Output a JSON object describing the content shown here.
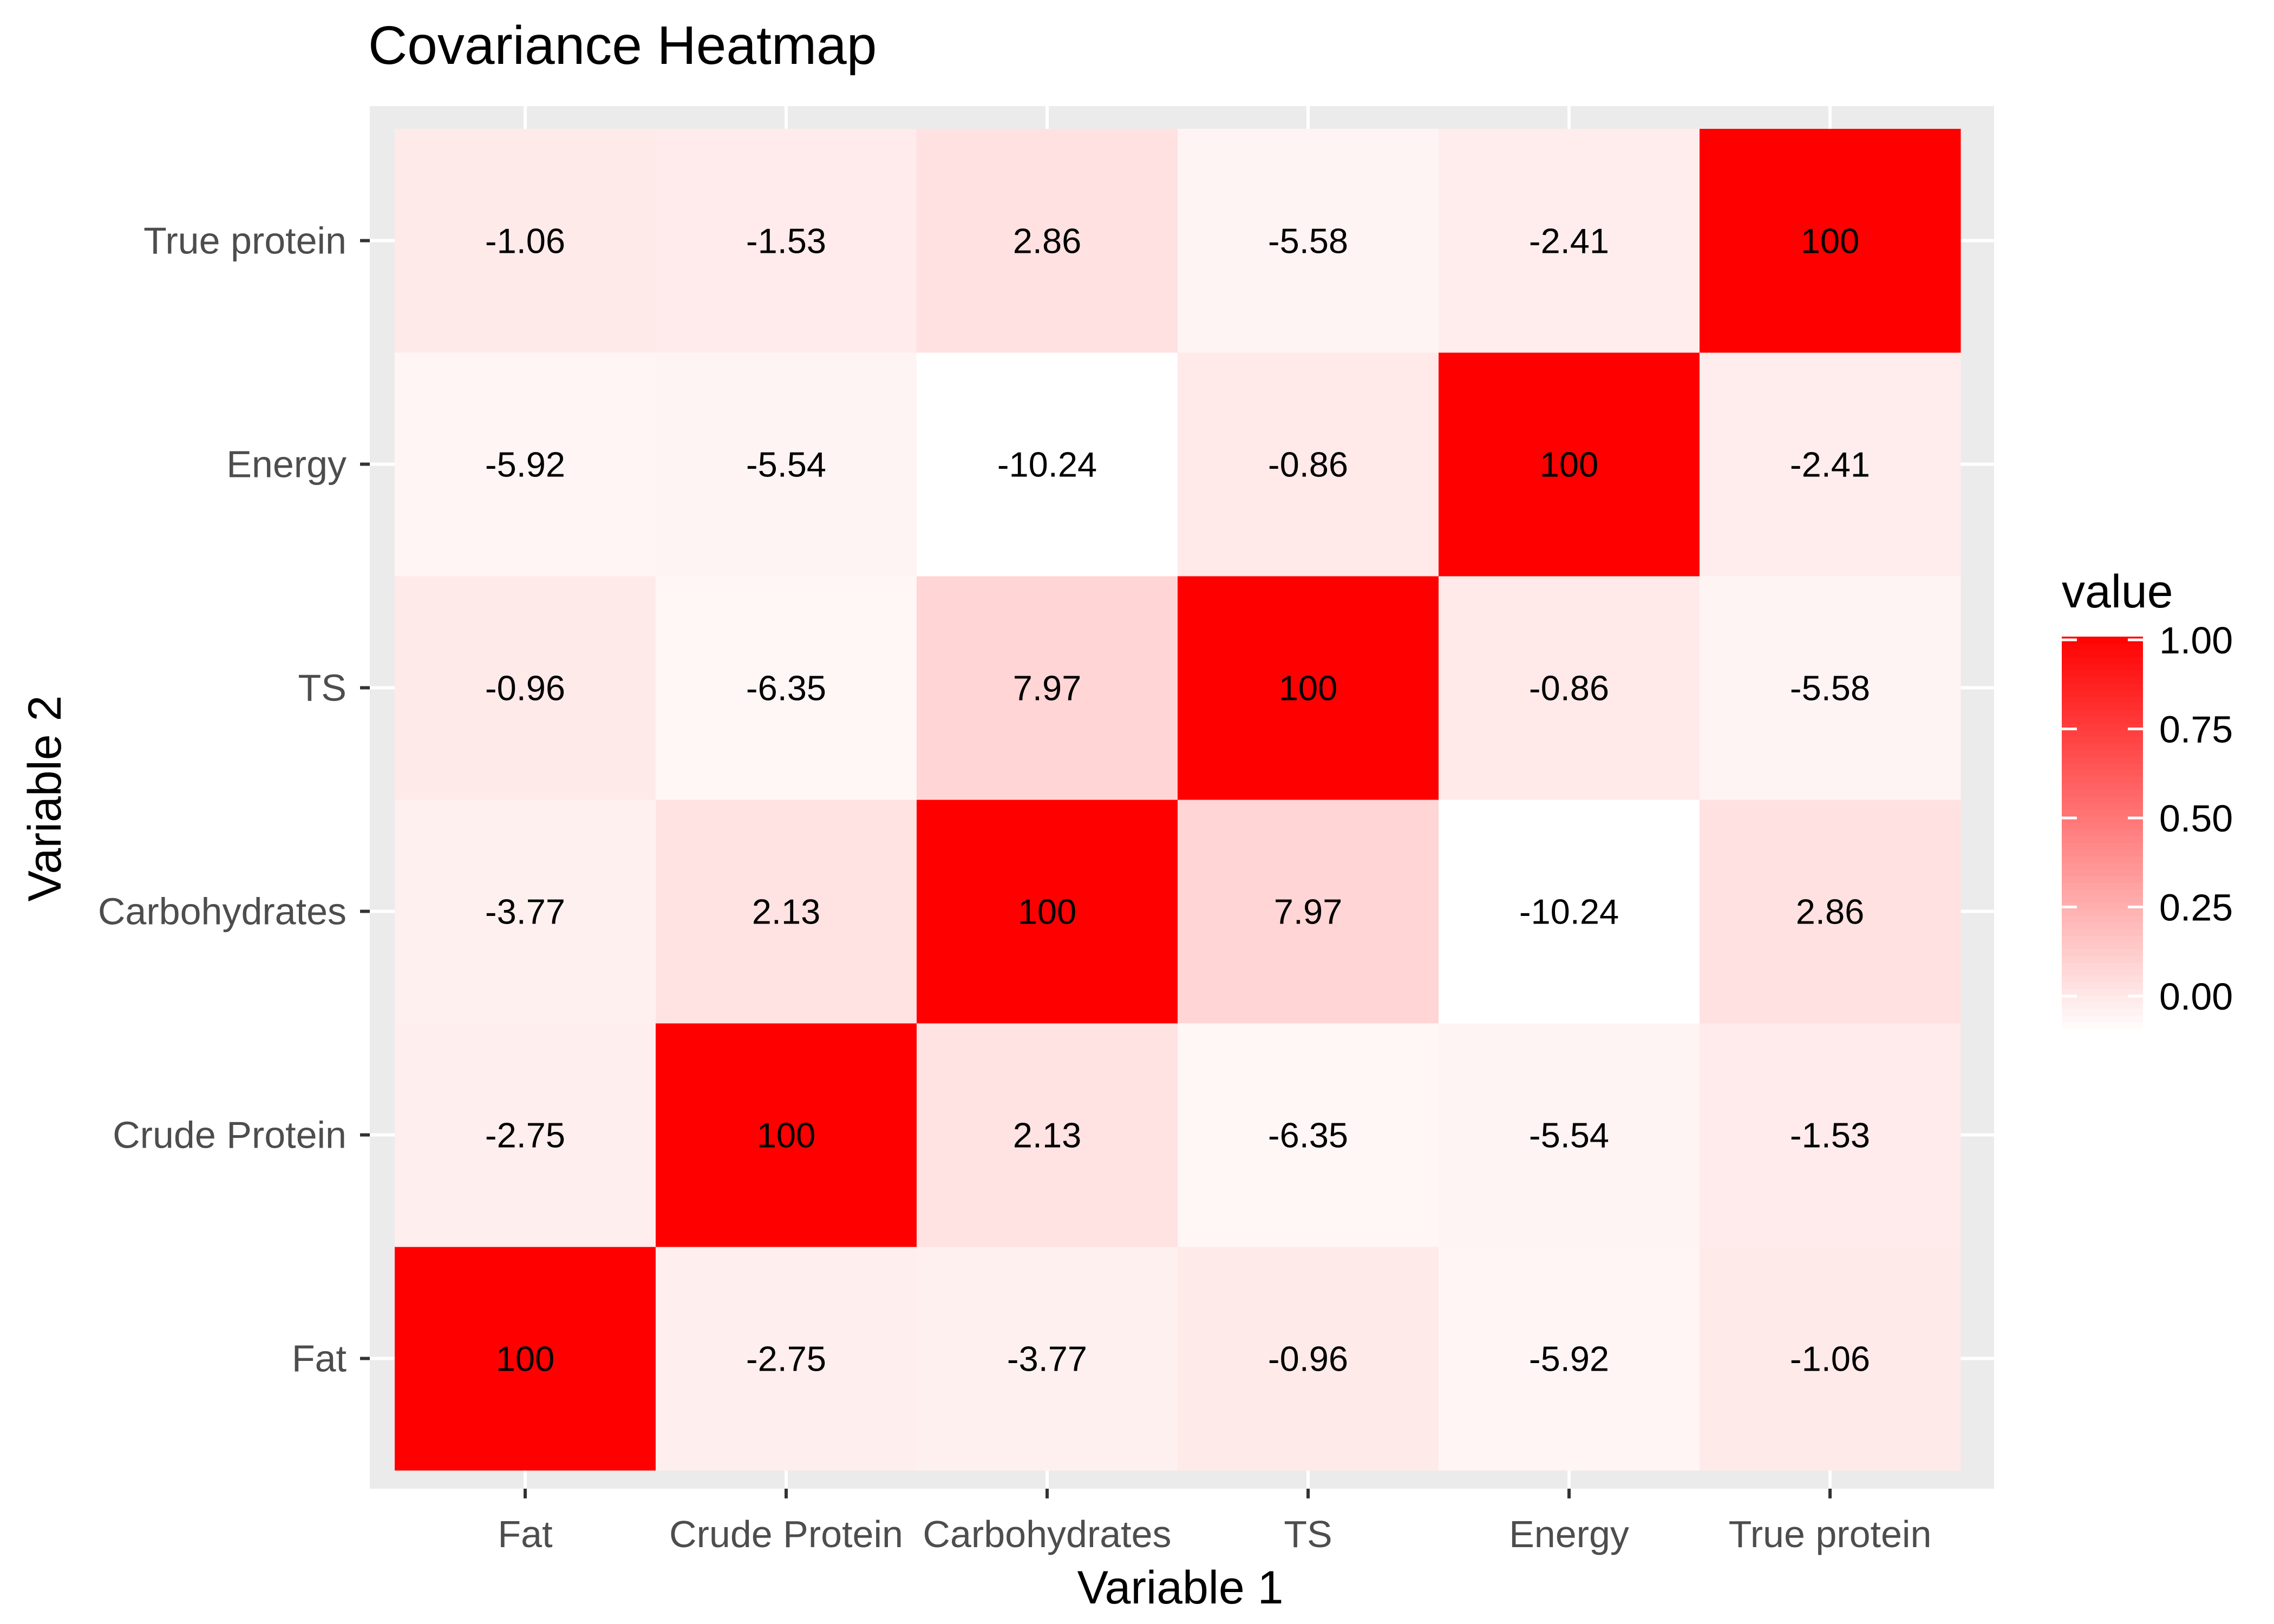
{
  "chart_data": {
    "type": "heatmap",
    "title": "Covariance Heatmap",
    "xlabel": "Variable 1",
    "ylabel": "Variable 2",
    "x_categories": [
      "Fat",
      "Crude Protein",
      "Carbohydrates",
      "TS",
      "Energy",
      "True protein"
    ],
    "y_categories": [
      "Fat",
      "Crude Protein",
      "Carbohydrates",
      "TS",
      "Energy",
      "True protein"
    ],
    "values": [
      [
        100,
        -2.75,
        -3.77,
        -0.96,
        -5.92,
        -1.06
      ],
      [
        -2.75,
        100,
        2.13,
        -6.35,
        -5.54,
        -1.53
      ],
      [
        -3.77,
        2.13,
        100,
        7.97,
        -10.24,
        2.86
      ],
      [
        -0.96,
        -6.35,
        7.97,
        100,
        -0.86,
        -5.58
      ],
      [
        -5.92,
        -5.54,
        -10.24,
        -0.86,
        100,
        -2.41
      ],
      [
        -1.06,
        -1.53,
        2.86,
        -5.58,
        -2.41,
        100
      ]
    ],
    "cell_labels": [
      [
        "100",
        "-2.75",
        "-3.77",
        "-0.96",
        "-5.92",
        "-1.06"
      ],
      [
        "-2.75",
        "100",
        "2.13",
        "-6.35",
        "-5.54",
        "-1.53"
      ],
      [
        "-3.77",
        "2.13",
        "100",
        "7.97",
        "-10.24",
        "2.86"
      ],
      [
        "-0.96",
        "-6.35",
        "7.97",
        "100",
        "-0.86",
        "-5.58"
      ],
      [
        "-5.92",
        "-5.54",
        "-10.24",
        "-0.86",
        "100",
        "-2.41"
      ],
      [
        "-1.06",
        "-1.53",
        "2.86",
        "-5.58",
        "-2.41",
        "100"
      ]
    ],
    "legend": {
      "title": "value",
      "placement": "right",
      "ticks": [
        0.0,
        0.25,
        0.5,
        0.75,
        1.0
      ],
      "tick_labels": [
        "0.00",
        "0.25",
        "0.50",
        "0.75",
        "1.00"
      ],
      "range": [
        0,
        1
      ],
      "low_color": "#ffffff",
      "high_color": "#ff0000"
    },
    "grid": true,
    "panel_background": "#ebebeb",
    "grid_color": "#ffffff"
  }
}
